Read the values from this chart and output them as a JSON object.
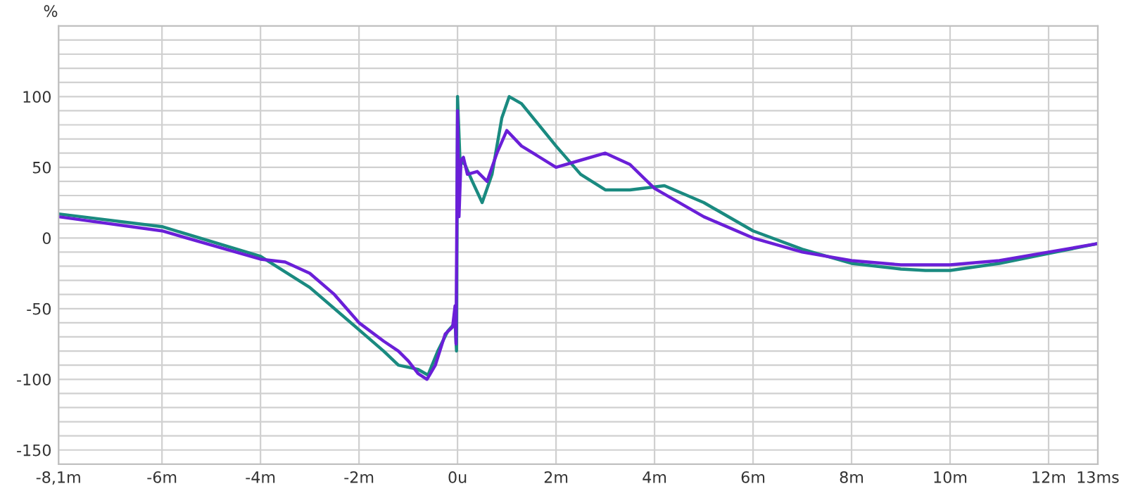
{
  "chart_data": {
    "type": "line",
    "ylabel": "%",
    "xlim": [
      -8.1,
      13
    ],
    "ylim": [
      -160,
      150
    ],
    "xticks": [
      {
        "value": -8.1,
        "label": "-8,1m"
      },
      {
        "value": -6,
        "label": "-6m"
      },
      {
        "value": -4,
        "label": "-4m"
      },
      {
        "value": -2,
        "label": "-2m"
      },
      {
        "value": 0,
        "label": "0u"
      },
      {
        "value": 2,
        "label": "2m"
      },
      {
        "value": 4,
        "label": "4m"
      },
      {
        "value": 6,
        "label": "6m"
      },
      {
        "value": 8,
        "label": "8m"
      },
      {
        "value": 10,
        "label": "10m"
      },
      {
        "value": 12,
        "label": "12m"
      },
      {
        "value": 13,
        "label": "13ms"
      }
    ],
    "yticks": [
      -150,
      {
        "value": -140,
        "label": null
      },
      {
        "value": -130,
        "label": null
      },
      {
        "value": -120,
        "label": null
      },
      {
        "value": -110,
        "label": null
      },
      -100,
      {
        "value": -90,
        "label": null
      },
      {
        "value": -80,
        "label": null
      },
      {
        "value": -70,
        "label": null
      },
      {
        "value": -60,
        "label": null
      },
      -50,
      {
        "value": -40,
        "label": null
      },
      {
        "value": -30,
        "label": null
      },
      {
        "value": -20,
        "label": null
      },
      {
        "value": -10,
        "label": null
      },
      0,
      {
        "value": 10,
        "label": null
      },
      {
        "value": 20,
        "label": null
      },
      {
        "value": 30,
        "label": null
      },
      {
        "value": 40,
        "label": null
      },
      50,
      {
        "value": 60,
        "label": null
      },
      {
        "value": 70,
        "label": null
      },
      {
        "value": 80,
        "label": null
      },
      {
        "value": 90,
        "label": null
      },
      100,
      {
        "value": 110,
        "label": null
      },
      {
        "value": 120,
        "label": null
      },
      {
        "value": 130,
        "label": null
      },
      {
        "value": 140,
        "label": null
      }
    ],
    "grid": true,
    "line_style": "solid",
    "series": [
      {
        "color": "#1a8a80",
        "x": [
          -8.1,
          -6,
          -4,
          -3,
          -2,
          -1.5,
          -1.2,
          -0.8,
          -0.6,
          -0.4,
          -0.2,
          -0.05,
          -0.02,
          0.0,
          0.05,
          0.15,
          0.3,
          0.5,
          0.7,
          0.9,
          1.05,
          1.3,
          2,
          2.5,
          3,
          3.5,
          4.2,
          5,
          6,
          7,
          8,
          9,
          9.5,
          10,
          11,
          12,
          13
        ],
        "values": [
          17,
          8,
          -13,
          -35,
          -65,
          -80,
          -90,
          -93,
          -97,
          -80,
          -66,
          -60,
          -80,
          100,
          55,
          52,
          40,
          25,
          45,
          85,
          100,
          95,
          65,
          45,
          34,
          34,
          37,
          25,
          5,
          -8,
          -18,
          -22,
          -23,
          -23,
          -18,
          -11,
          -4
        ]
      },
      {
        "color": "#6a1fd8",
        "x": [
          -8.1,
          -6,
          -4,
          -3.5,
          -3,
          -2.5,
          -2,
          -1.5,
          -1.2,
          -1,
          -0.8,
          -0.62,
          -0.45,
          -0.25,
          -0.1,
          -0.05,
          -0.03,
          0.0,
          0.03,
          0.07,
          0.12,
          0.2,
          0.4,
          0.6,
          0.8,
          1.0,
          1.3,
          2,
          2.5,
          3,
          3.5,
          4,
          5,
          6,
          7,
          8,
          9,
          10,
          11,
          12,
          13
        ],
        "values": [
          15,
          5,
          -15,
          -17,
          -25,
          -40,
          -60,
          -73,
          -80,
          -87,
          -96,
          -100,
          -90,
          -68,
          -63,
          -48,
          -75,
          90,
          15,
          55,
          57,
          45,
          47,
          40,
          60,
          76,
          65,
          50,
          55,
          60,
          52,
          35,
          15,
          0,
          -10,
          -16,
          -19,
          -19,
          -16,
          -10,
          -4
        ]
      }
    ]
  }
}
